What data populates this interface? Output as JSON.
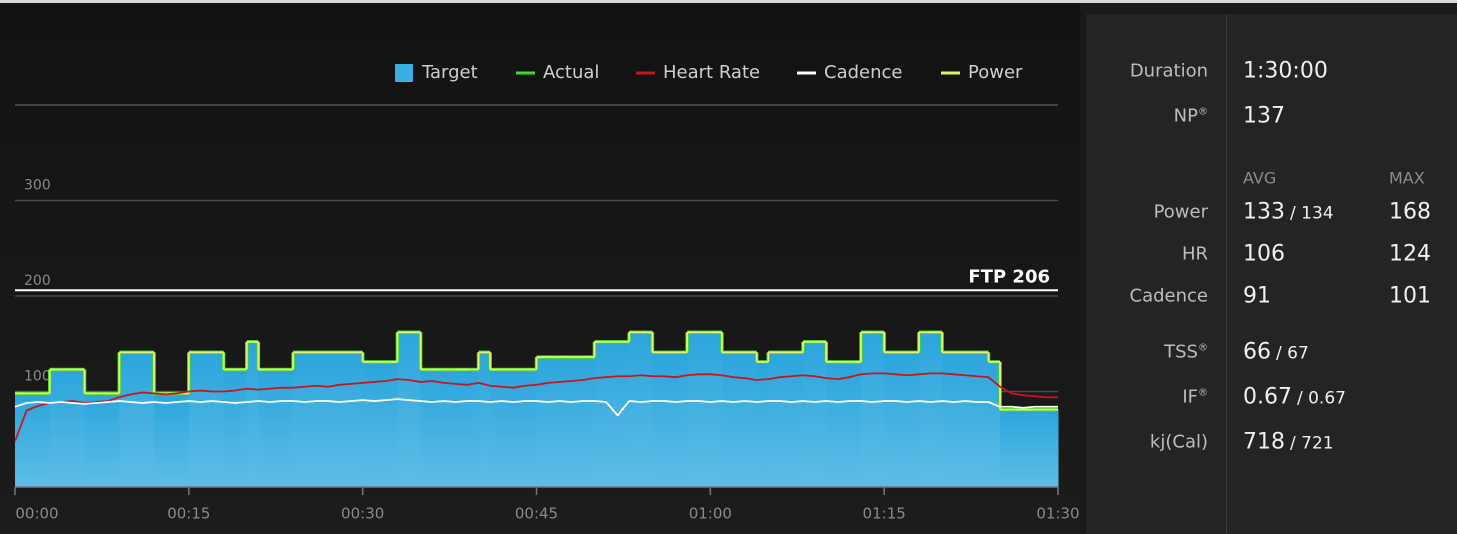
{
  "chart_data": {
    "type": "workout",
    "x": [
      0,
      1,
      2,
      3,
      4,
      5,
      6,
      7,
      8,
      9,
      10,
      11,
      12,
      13,
      14,
      15,
      16,
      17,
      18,
      19,
      20,
      21,
      22,
      23,
      24,
      25,
      26,
      27,
      28,
      29,
      30,
      31,
      32,
      33,
      34,
      35,
      36,
      37,
      38,
      39,
      40,
      41,
      42,
      43,
      44,
      45,
      46,
      47,
      48,
      49,
      50,
      51,
      52,
      53,
      54,
      55,
      56,
      57,
      58,
      59,
      60,
      61,
      62,
      63,
      64,
      65,
      66,
      67,
      68,
      69,
      70,
      71,
      72,
      73,
      74,
      75,
      76,
      77,
      78,
      79,
      80,
      81,
      82,
      83,
      84,
      85,
      86,
      87,
      88,
      89,
      90
    ],
    "series": [
      {
        "name": "Target",
        "color": "#3aaee0",
        "style": "area",
        "values": [
          98,
          98,
          98,
          123,
          123,
          123,
          98,
          98,
          98,
          141,
          141,
          141,
          98,
          98,
          98,
          141,
          141,
          141,
          123,
          123,
          152,
          123,
          123,
          123,
          141,
          141,
          141,
          141,
          141,
          141,
          131,
          131,
          131,
          162,
          162,
          123,
          123,
          123,
          123,
          123,
          141,
          123,
          123,
          123,
          123,
          136,
          136,
          136,
          136,
          136,
          152,
          152,
          152,
          162,
          162,
          141,
          141,
          141,
          162,
          162,
          162,
          141,
          141,
          141,
          131,
          141,
          141,
          141,
          152,
          152,
          131,
          131,
          131,
          162,
          162,
          141,
          141,
          141,
          162,
          162,
          141,
          141,
          141,
          141,
          131,
          81,
          81,
          81,
          81,
          81,
          81
        ]
      },
      {
        "name": "Actual",
        "color": "#3fd82a",
        "style": "step",
        "values": [
          98,
          98,
          98,
          123,
          123,
          123,
          98,
          98,
          98,
          141,
          141,
          141,
          98,
          98,
          98,
          141,
          141,
          141,
          123,
          123,
          152,
          123,
          123,
          123,
          141,
          141,
          141,
          141,
          141,
          141,
          131,
          131,
          131,
          162,
          162,
          123,
          123,
          123,
          123,
          123,
          141,
          123,
          123,
          123,
          123,
          136,
          136,
          136,
          136,
          136,
          152,
          152,
          152,
          162,
          162,
          141,
          141,
          141,
          162,
          162,
          162,
          141,
          141,
          141,
          131,
          141,
          141,
          141,
          152,
          152,
          131,
          131,
          131,
          162,
          162,
          141,
          141,
          141,
          162,
          162,
          141,
          141,
          141,
          141,
          131,
          81,
          81,
          81,
          81,
          81,
          81
        ]
      },
      {
        "name": "Heart Rate",
        "color": "#c8161c",
        "style": "line",
        "values": [
          48,
          80,
          85,
          88,
          89,
          90,
          88,
          89,
          90,
          94,
          97,
          99,
          98,
          97,
          98,
          100,
          101,
          100,
          100,
          101,
          103,
          102,
          103,
          104,
          104,
          105,
          106,
          105,
          107,
          108,
          109,
          110,
          111,
          113,
          112,
          110,
          111,
          109,
          108,
          107,
          109,
          106,
          105,
          104,
          106,
          107,
          109,
          110,
          111,
          112,
          114,
          115,
          116,
          116,
          117,
          116,
          116,
          115,
          117,
          118,
          118,
          117,
          115,
          114,
          112,
          113,
          115,
          116,
          117,
          116,
          114,
          113,
          115,
          118,
          119,
          119,
          118,
          117,
          118,
          119,
          119,
          118,
          117,
          116,
          115,
          105,
          98,
          96,
          95,
          94,
          94
        ]
      },
      {
        "name": "Cadence",
        "color": "#ffffff",
        "style": "line",
        "values": [
          84,
          88,
          89,
          88,
          89,
          88,
          87,
          88,
          89,
          90,
          89,
          88,
          89,
          88,
          89,
          90,
          89,
          90,
          89,
          88,
          89,
          90,
          89,
          90,
          90,
          89,
          90,
          90,
          89,
          90,
          91,
          90,
          91,
          92,
          91,
          90,
          89,
          90,
          89,
          90,
          90,
          89,
          90,
          89,
          90,
          90,
          89,
          90,
          89,
          90,
          90,
          89,
          75,
          90,
          89,
          90,
          90,
          89,
          90,
          90,
          89,
          90,
          89,
          90,
          89,
          90,
          90,
          89,
          90,
          89,
          90,
          89,
          90,
          90,
          89,
          90,
          90,
          89,
          90,
          89,
          90,
          89,
          90,
          89,
          89,
          84,
          84,
          83,
          84,
          84,
          84
        ]
      },
      {
        "name": "Power",
        "color": "#e6f26a",
        "style": "step",
        "values": [
          98,
          98,
          98,
          123,
          123,
          123,
          98,
          98,
          98,
          141,
          141,
          141,
          98,
          98,
          98,
          141,
          141,
          141,
          123,
          123,
          152,
          123,
          123,
          123,
          141,
          141,
          141,
          141,
          141,
          141,
          131,
          131,
          131,
          162,
          162,
          123,
          123,
          123,
          123,
          123,
          141,
          123,
          123,
          123,
          123,
          136,
          136,
          136,
          136,
          136,
          152,
          152,
          152,
          162,
          162,
          141,
          141,
          141,
          162,
          162,
          162,
          141,
          141,
          141,
          131,
          141,
          141,
          141,
          152,
          152,
          131,
          131,
          131,
          162,
          162,
          141,
          141,
          141,
          162,
          162,
          141,
          141,
          141,
          141,
          131,
          81,
          81,
          81,
          81,
          81,
          81
        ]
      }
    ],
    "xlim": [
      0,
      90
    ],
    "xticks": [
      {
        "value": 0,
        "label": "00:00"
      },
      {
        "value": 15,
        "label": "00:15"
      },
      {
        "value": 30,
        "label": "00:30"
      },
      {
        "value": 45,
        "label": "00:45"
      },
      {
        "value": 60,
        "label": "01:00"
      },
      {
        "value": 75,
        "label": "01:15"
      },
      {
        "value": 90,
        "label": "01:30"
      }
    ],
    "ylim": [
      0,
      400
    ],
    "yticks": [
      100,
      200,
      300
    ],
    "grid": true,
    "ftp": {
      "value": 206,
      "label": "FTP 206"
    }
  },
  "stats": {
    "duration": {
      "label": "Duration",
      "value": "1:30:00"
    },
    "np": {
      "label": "NP",
      "sup": "®",
      "value": "137"
    },
    "headers": [
      "AVG",
      "MAX"
    ],
    "rows": [
      {
        "label": "Power",
        "avg": "133",
        "avg_alt": "/ 134",
        "max": "168"
      },
      {
        "label": "HR",
        "avg": "106",
        "max": "124"
      },
      {
        "label": "Cadence",
        "avg": "91",
        "max": "101"
      }
    ],
    "totals": [
      {
        "label": "TSS",
        "sup": "®",
        "value": "66",
        "alt": "/ 67"
      },
      {
        "label": "IF",
        "sup": "®",
        "value": "0.67",
        "alt": "/ 0.67"
      },
      {
        "label": "kj(Cal)",
        "value": "718",
        "alt": "/ 721"
      }
    ]
  }
}
